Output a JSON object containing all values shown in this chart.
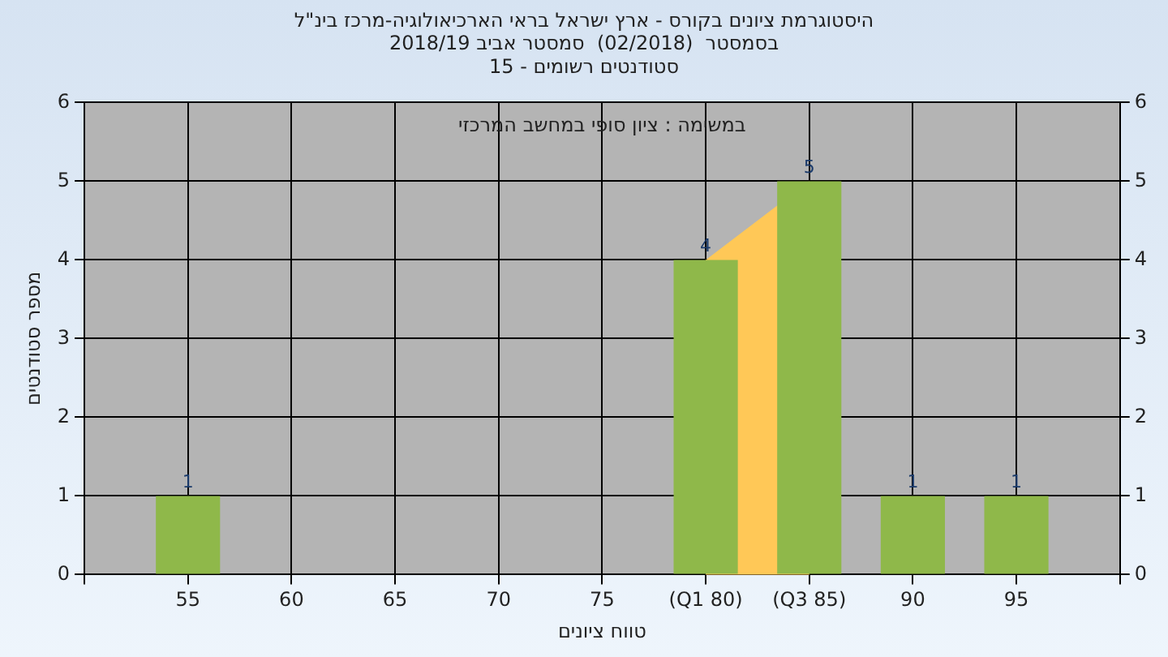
{
  "chart_data": {
    "type": "bar",
    "title": "היסטוגרמת ציונים בקורס - ארץ ישראל בראי הארכיאולוגיה-מרכז בינ\"ל",
    "subtitle": "בסמסטר  (02/2018)  סמסטר אביב 2018/19\nסטודנטים רשומים - 15",
    "xlabel": "טווח ציונים",
    "ylabel": "מספר סטודנטים",
    "annotations": [
      "במשימה : ציון סופי במחשב המרכזי"
    ],
    "categories": [
      null,
      "55",
      "60",
      "65",
      "70",
      "75",
      "(Q1 80)",
      "(Q3 85)",
      "90",
      "95",
      null
    ],
    "values": [
      null,
      1,
      0,
      0,
      0,
      0,
      4,
      5,
      1,
      1,
      null
    ],
    "value_labels": [
      null,
      "1",
      null,
      null,
      null,
      null,
      "4",
      "5",
      "1",
      "1",
      null
    ],
    "color": "#8fb84a",
    "bands": [
      {
        "axis": "x",
        "from": "(Q1 80)",
        "to": "(Q3 85)",
        "color": "#ffc857"
      }
    ],
    "ylim": [
      0,
      6
    ],
    "yticks": [
      0,
      1,
      2,
      3,
      4,
      5,
      6
    ],
    "y2lim": [
      0,
      6
    ],
    "y2ticks": [
      0,
      1,
      2,
      3,
      4,
      5,
      6
    ],
    "grid": true,
    "legend": false
  }
}
